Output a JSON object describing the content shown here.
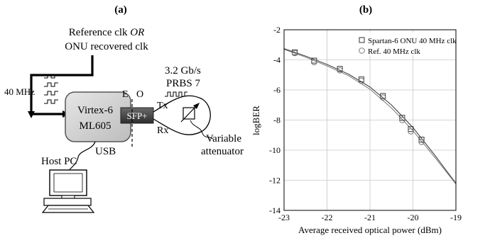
{
  "panel_a": {
    "label": "(a)",
    "ref_line1_pre": "Reference clk ",
    "ref_line1_em": "OR",
    "ref_line2": "ONU recovered clk",
    "clk_in": "40 MHz",
    "board_line1": "Virtex-6",
    "board_line2": "ML605",
    "sfp": "SFP+",
    "e_label": "E",
    "o_label": "O",
    "rate": "3.2 Gb/s",
    "prbs": "PRBS 7",
    "tx": "Tx",
    "rx": "Rx",
    "attenuator_line1": "Variable",
    "attenuator_line2": "attenuator",
    "usb": "USB",
    "host": "Host PC"
  },
  "panel_b": {
    "label": "(b)"
  },
  "chart_data": {
    "type": "scatter",
    "xlabel": "Average received optical power (dBm)",
    "ylabel": "logBER",
    "xlim": [
      -23,
      -19
    ],
    "ylim": [
      -14,
      -2
    ],
    "xticks": [
      "-23",
      "-22",
      "-21",
      "-20",
      "-19"
    ],
    "yticks": [
      "-2",
      "-4",
      "-6",
      "-8",
      "-10",
      "-12",
      "-14"
    ],
    "grid": true,
    "legend_position": "top-right",
    "series": [
      {
        "name": "Spartan-6 ONU 40 MHz clk",
        "marker": "square",
        "x": [
          -22.75,
          -22.3,
          -21.7,
          -21.2,
          -20.7,
          -20.25,
          -20.05,
          -19.8
        ],
        "y": [
          -3.5,
          -4.05,
          -4.6,
          -5.3,
          -6.4,
          -7.85,
          -8.6,
          -9.3
        ]
      },
      {
        "name": "Ref. 40 MHz clk",
        "marker": "circle",
        "x": [
          -22.75,
          -22.3,
          -21.7,
          -21.2,
          -20.7,
          -20.25,
          -20.05,
          -19.8
        ],
        "y": [
          -3.55,
          -4.15,
          -4.7,
          -5.4,
          -6.5,
          -8.0,
          -8.75,
          -9.45
        ]
      }
    ],
    "fit_curves": [
      {
        "x": [
          -23.0,
          -22.5,
          -22.0,
          -21.5,
          -21.0,
          -20.5,
          -20.0,
          -19.5,
          -19.0
        ],
        "y": [
          -3.25,
          -3.75,
          -4.3,
          -4.95,
          -5.8,
          -7.0,
          -8.5,
          -10.3,
          -12.2
        ]
      },
      {
        "x": [
          -23.0,
          -22.5,
          -22.0,
          -21.5,
          -21.0,
          -20.5,
          -20.0,
          -19.5,
          -19.0
        ],
        "y": [
          -3.3,
          -3.82,
          -4.4,
          -5.05,
          -5.95,
          -7.2,
          -8.7,
          -10.45,
          -12.25
        ]
      }
    ]
  }
}
